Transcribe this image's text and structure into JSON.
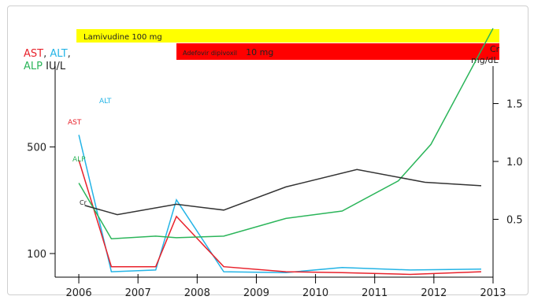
{
  "chart_data": {
    "type": "line",
    "title": "",
    "xlabel": "",
    "ylabel_left": {
      "line1": [
        {
          "text": "AST",
          "color": "#e8212b"
        },
        {
          "text": ", ",
          "color": "#333333"
        },
        {
          "text": "ALT",
          "color": "#24b4e6"
        },
        {
          "text": ",",
          "color": "#333333"
        }
      ],
      "line2": [
        {
          "text": "ALP",
          "color": "#2bb55a"
        },
        {
          "text": " IU/L",
          "color": "#222222"
        }
      ]
    },
    "ylabel_right": {
      "line1": "Cr",
      "line2": "mg/dL"
    },
    "x_ticks": [
      "2006",
      "2007",
      "2008",
      "2009",
      "2010",
      "2011",
      "2012",
      "2013"
    ],
    "xlim": [
      2005.6,
      2013.0
    ],
    "y_left": {
      "scale": "log",
      "ticks": [
        100,
        500
      ],
      "lim": [
        70,
        3000
      ]
    },
    "y_right": {
      "ticks": [
        0.5,
        1.0,
        1.5
      ],
      "lim": [
        0.0,
        2.15
      ]
    },
    "drugs": [
      {
        "name": "Lamivudine 100 mg",
        "start": 2006.0,
        "end": 2013.0,
        "color": "#ffff00"
      },
      {
        "name_small": "Adefovir dipivoxil",
        "name_big": "10 mg",
        "start": 2007.65,
        "end": 2013.0,
        "color": "#ff0000"
      }
    ],
    "series": [
      {
        "name": "ALT",
        "axis": "left",
        "color": "#24b4e6",
        "x": [
          2006.0,
          2006.55,
          2007.3,
          2007.65,
          2008.45,
          2009.5,
          2010.45,
          2011.6,
          2012.8
        ],
        "y": [
          600,
          76,
          78,
          225,
          76,
          75,
          81,
          78,
          79
        ]
      },
      {
        "name": "AST",
        "axis": "left",
        "color": "#e8212b",
        "x": [
          2006.0,
          2006.55,
          2007.3,
          2007.65,
          2008.45,
          2009.5,
          2010.45,
          2011.6,
          2012.8
        ],
        "y": [
          410,
          82,
          82,
          175,
          82,
          76,
          75,
          73,
          76
        ]
      },
      {
        "name": "ALP",
        "axis": "left",
        "color": "#2bb55a",
        "x": [
          2006.0,
          2006.55,
          2007.3,
          2007.65,
          2008.45,
          2009.5,
          2010.45,
          2011.4,
          2011.95,
          2013.0
        ],
        "y": [
          290,
          125,
          130,
          127,
          130,
          170,
          190,
          300,
          520,
          3000
        ]
      },
      {
        "name": "Cr",
        "axis": "right",
        "color": "#333333",
        "x": [
          2006.1,
          2006.65,
          2007.65,
          2008.45,
          2009.5,
          2010.7,
          2011.85,
          2012.8
        ],
        "y": [
          0.62,
          0.54,
          0.63,
          0.58,
          0.78,
          0.93,
          0.82,
          0.79
        ]
      }
    ],
    "series_labels": [
      {
        "text": "ALT",
        "color": "#24b4e6"
      },
      {
        "text": "AST",
        "color": "#e8212b"
      },
      {
        "text": "ALP",
        "color": "#2bb55a"
      },
      {
        "text": "Cr",
        "color": "#222222"
      }
    ],
    "grid": false,
    "legend": "none"
  }
}
